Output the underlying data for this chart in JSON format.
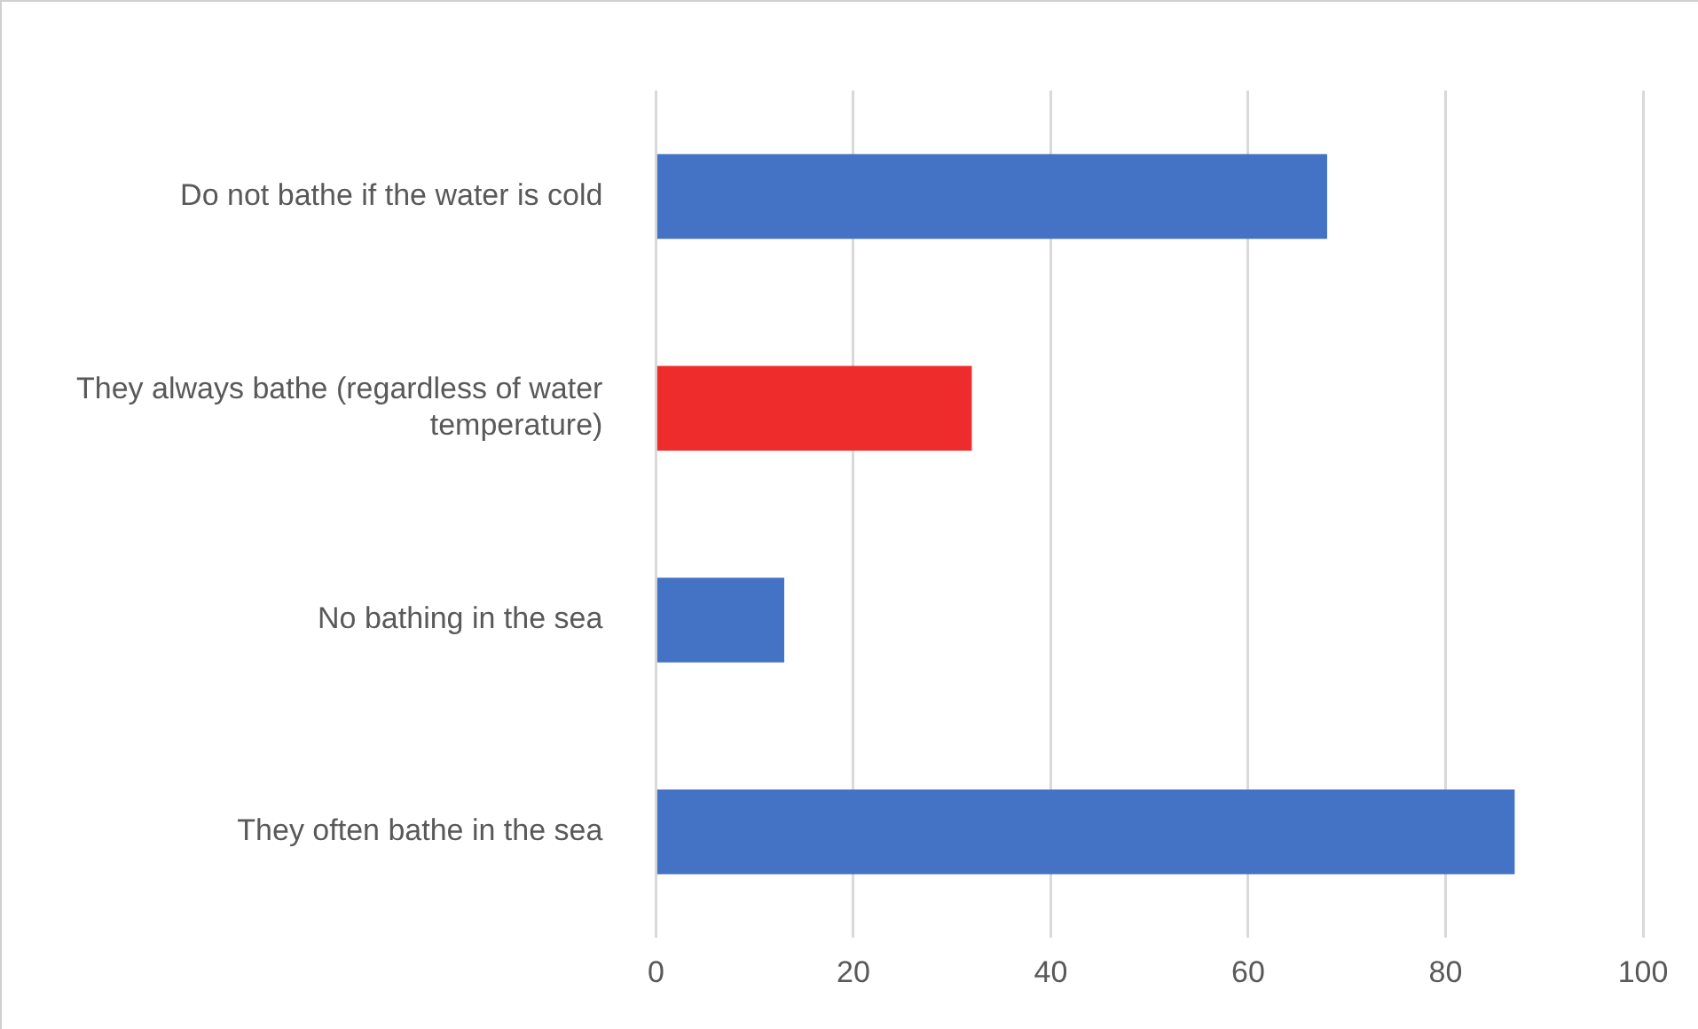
{
  "chart_data": {
    "type": "bar",
    "orientation": "horizontal",
    "categories": [
      "Do not bathe if the water is cold",
      "They always bathe (regardless of water temperature)",
      "No bathing in the sea",
      "They often bathe in the sea"
    ],
    "values": [
      68,
      32,
      13,
      87
    ],
    "colors": [
      "#4472c4",
      "#ee2c2c",
      "#4472c4",
      "#4472c4"
    ],
    "xlim": [
      0,
      100
    ],
    "xticks": [
      0,
      20,
      40,
      60,
      80,
      100
    ],
    "grid": "x",
    "legend": false
  }
}
